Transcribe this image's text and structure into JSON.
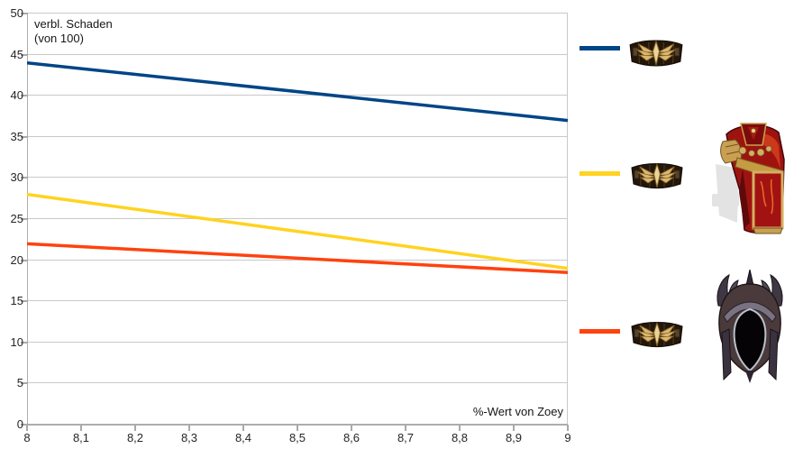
{
  "chart": {
    "y_axis_title_line1": "verbl. Schaden",
    "y_axis_title_line2": "(von 100)",
    "x_axis_title": "%-Wert von Zoey",
    "x_tick_labels": [
      "8",
      "8,1",
      "8,2",
      "8,3",
      "8,4",
      "8,5",
      "8,6",
      "8,7",
      "8,8",
      "8,9",
      "9"
    ],
    "y_tick_labels": [
      "0",
      "5",
      "10",
      "15",
      "20",
      "25",
      "30",
      "35",
      "40",
      "45",
      "50"
    ]
  },
  "chart_data": {
    "type": "line",
    "x": [
      8,
      9
    ],
    "series": [
      {
        "name": "belt-only",
        "color": "#004586",
        "values": [
          44,
          37
        ]
      },
      {
        "name": "belt-and-chest-armor",
        "color": "#FFD320",
        "values": [
          28,
          19
        ]
      },
      {
        "name": "belt-and-helmet",
        "color": "#FF420E",
        "values": [
          22,
          18.5
        ]
      }
    ],
    "title": "",
    "xlabel": "%-Wert von Zoey",
    "ylabel": "verbl. Schaden (von 100)",
    "xlim": [
      8,
      9
    ],
    "ylim": [
      0,
      50
    ],
    "x_ticks": [
      8,
      8.1,
      8.2,
      8.3,
      8.4,
      8.5,
      8.6,
      8.7,
      8.8,
      8.9,
      9
    ],
    "y_ticks": [
      0,
      5,
      10,
      15,
      20,
      25,
      30,
      35,
      40,
      45,
      50
    ],
    "grid": "horizontal",
    "legend_position": "right",
    "line_width": 3.5
  },
  "legend": {
    "entries": [
      {
        "name": "belt-only",
        "color": "#004586",
        "icons": [
          "belt-icon"
        ]
      },
      {
        "name": "belt-and-chest-armor",
        "color": "#FFD320",
        "icons": [
          "belt-icon",
          "chest-armor-icon"
        ]
      },
      {
        "name": "belt-and-helmet",
        "color": "#FF420E",
        "icons": [
          "belt-icon",
          "helmet-icon"
        ]
      }
    ]
  },
  "colors": {
    "background": "#ffffff",
    "axis": "#adadad",
    "gridline": "#c9c9c9",
    "tick": "#a9a9a9",
    "text": "#262626",
    "series_blue": "#004586",
    "series_yellow": "#FFD320",
    "series_red": "#FF420E"
  }
}
